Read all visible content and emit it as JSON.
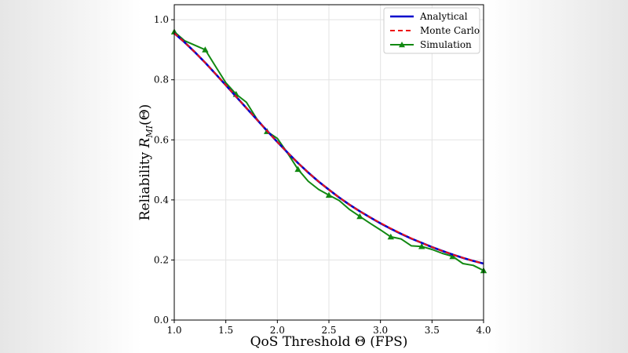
{
  "chart_data": {
    "type": "line",
    "title": "",
    "xlabel": "QoS Threshold Θ (FPS)",
    "ylabel_prefix": "Reliability ",
    "ylabel_symbol": "R",
    "ylabel_subscript": "MI",
    "ylabel_suffix": "(Θ)",
    "xlim": [
      1.0,
      4.0
    ],
    "ylim": [
      0.0,
      1.05
    ],
    "xticks": [
      "1.0",
      "1.5",
      "2.0",
      "2.5",
      "3.0",
      "3.5",
      "4.0"
    ],
    "yticks": [
      "0.0",
      "0.2",
      "0.4",
      "0.6",
      "0.8",
      "1.0"
    ],
    "grid": true,
    "legend_position": "top-right",
    "series": [
      {
        "name": "Analytical",
        "color": "#0000cc",
        "style": "solid",
        "x": [
          1.0,
          1.1,
          1.2,
          1.3,
          1.4,
          1.5,
          1.6,
          1.7,
          1.8,
          1.9,
          2.0,
          2.1,
          2.2,
          2.3,
          2.4,
          2.5,
          2.6,
          2.7,
          2.8,
          2.9,
          3.0,
          3.1,
          3.2,
          3.3,
          3.4,
          3.5,
          3.6,
          3.7,
          3.8,
          3.9,
          4.0
        ],
        "y": [
          0.955,
          0.925,
          0.892,
          0.857,
          0.82,
          0.782,
          0.744,
          0.706,
          0.668,
          0.63,
          0.593,
          0.557,
          0.523,
          0.491,
          0.461,
          0.434,
          0.408,
          0.384,
          0.362,
          0.342,
          0.322,
          0.304,
          0.287,
          0.271,
          0.257,
          0.243,
          0.23,
          0.218,
          0.207,
          0.197,
          0.188
        ]
      },
      {
        "name": "Monte Carlo",
        "color": "#ee1111",
        "style": "dashed",
        "x": [
          1.0,
          1.1,
          1.2,
          1.3,
          1.4,
          1.5,
          1.6,
          1.7,
          1.8,
          1.9,
          2.0,
          2.1,
          2.2,
          2.3,
          2.4,
          2.5,
          2.6,
          2.7,
          2.8,
          2.9,
          3.0,
          3.1,
          3.2,
          3.3,
          3.4,
          3.5,
          3.6,
          3.7,
          3.8,
          3.9,
          4.0
        ],
        "y": [
          0.955,
          0.925,
          0.892,
          0.857,
          0.82,
          0.782,
          0.744,
          0.706,
          0.668,
          0.63,
          0.593,
          0.557,
          0.523,
          0.491,
          0.461,
          0.434,
          0.408,
          0.384,
          0.362,
          0.342,
          0.323,
          0.305,
          0.288,
          0.272,
          0.257,
          0.243,
          0.23,
          0.218,
          0.207,
          0.197,
          0.188
        ]
      },
      {
        "name": "Simulation",
        "color": "#118811",
        "style": "solid",
        "marker": "triangle",
        "markers_at": [
          1.0,
          1.3,
          1.6,
          1.9,
          2.2,
          2.5,
          2.8,
          3.1,
          3.4,
          3.7,
          4.0
        ],
        "x": [
          1.0,
          1.1,
          1.2,
          1.3,
          1.4,
          1.5,
          1.6,
          1.7,
          1.8,
          1.9,
          2.0,
          2.1,
          2.2,
          2.3,
          2.4,
          2.5,
          2.6,
          2.7,
          2.8,
          2.9,
          3.0,
          3.1,
          3.2,
          3.3,
          3.4,
          3.5,
          3.6,
          3.7,
          3.8,
          3.9,
          4.0
        ],
        "y": [
          0.96,
          0.93,
          0.915,
          0.9,
          0.845,
          0.79,
          0.752,
          0.725,
          0.67,
          0.628,
          0.605,
          0.555,
          0.502,
          0.462,
          0.435,
          0.416,
          0.398,
          0.368,
          0.345,
          0.322,
          0.3,
          0.277,
          0.27,
          0.247,
          0.245,
          0.235,
          0.222,
          0.212,
          0.188,
          0.182,
          0.165
        ]
      }
    ]
  }
}
